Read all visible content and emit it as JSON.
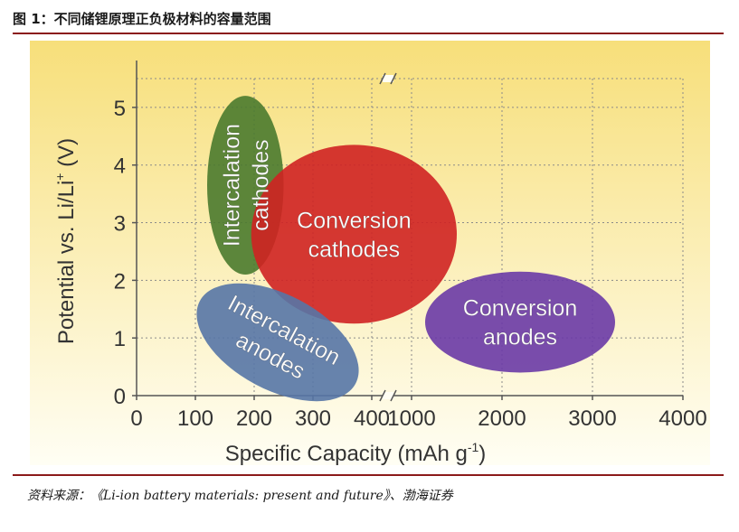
{
  "header": {
    "figure_title": "图 1：不同储锂原理正负极材料的容量范围"
  },
  "footer": {
    "source": "资料来源：《Li-ion battery materials: present and future》、渤海证券"
  },
  "colors": {
    "background_top": "#f7df7a",
    "background_bottom": "#fffef4",
    "intercalation_cathodes": "#4a7a2e",
    "conversion_cathodes": "#cf2222",
    "intercalation_anodes": "#5676a6",
    "conversion_anodes": "#6a3aa6",
    "axis": "#555555"
  },
  "chart_data": {
    "type": "scatter",
    "subtype": "region-ellipses",
    "xlabel": "Specific Capacity (mAh g",
    "xlabel_sup": "-1",
    "xlabel_end": ")",
    "ylabel": "Potential vs. Li/Li",
    "ylabel_sup": "+",
    "ylabel_end": " (V)",
    "x_axis_segments": [
      {
        "range": [
          0,
          400
        ],
        "tick_labels": [
          "0",
          "100",
          "200",
          "300",
          "400"
        ]
      },
      {
        "range": [
          1000,
          4000
        ],
        "tick_labels": [
          "1000",
          "2000",
          "3000",
          "4000"
        ]
      }
    ],
    "axis_break_x": [
      400,
      1000
    ],
    "ylim": [
      0,
      5.5
    ],
    "y_tick_labels": [
      "0",
      "1",
      "2",
      "3",
      "4",
      "5"
    ],
    "grid": true,
    "regions": [
      {
        "label_lines": [
          "Intercalation",
          "cathodes"
        ],
        "color": "#4a7a2e",
        "x_range": [
          120,
          250
        ],
        "y_range": [
          2.1,
          5.2
        ],
        "text_rotation": -90
      },
      {
        "label_lines": [
          "Conversion",
          "cathodes"
        ],
        "color": "#cf2222",
        "x_range": [
          195,
          1500
        ],
        "y_range": [
          1.25,
          4.35
        ],
        "text_rotation": 0
      },
      {
        "label_lines": [
          "Intercalation",
          "anodes"
        ],
        "color": "#5676a6",
        "x_range": [
          90,
          390
        ],
        "y_range": [
          0.1,
          1.75
        ],
        "text_rotation": 28
      },
      {
        "label_lines": [
          "Conversion",
          "anodes"
        ],
        "color": "#6a3aa6",
        "x_range": [
          1150,
          3250
        ],
        "y_range": [
          0.4,
          2.15
        ],
        "text_rotation": 0
      }
    ]
  }
}
